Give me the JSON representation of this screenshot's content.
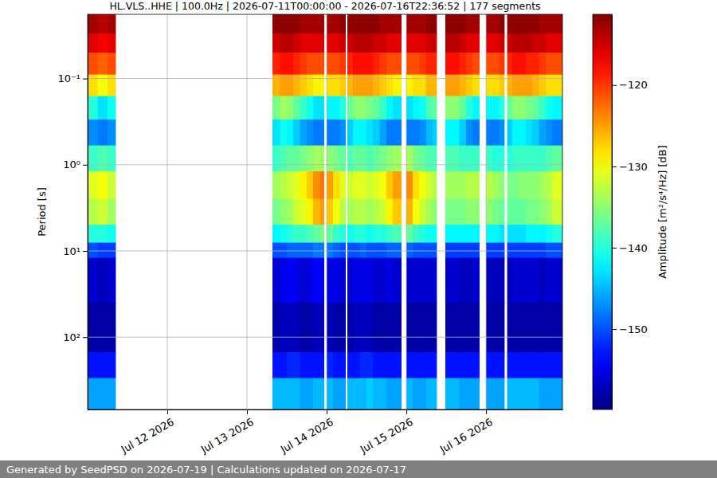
{
  "chart_data": {
    "type": "heatmap",
    "title": "HL.VLS..HHE | 100.0Hz | 2026-07-11T00:00:00 - 2026-07-16T22:36:52 | 177 segments",
    "y_label": "Period [s]",
    "footer": "Generated by SeedPSD on 2026-07-19 | Calculations updated on 2026-07-17",
    "log": "y",
    "grid": true,
    "xlim": [
      "2026-07-11T00:00:00",
      "2026-07-16T23:00:00"
    ],
    "xticks": [
      {
        "value": "2026-07-12T00:00:00",
        "label": "Jul 12 2026"
      },
      {
        "value": "2026-07-13T00:00:00",
        "label": "Jul 13 2026"
      },
      {
        "value": "2026-07-14T00:00:00",
        "label": "Jul 14 2026"
      },
      {
        "value": "2026-07-15T00:00:00",
        "label": "Jul 15 2026"
      },
      {
        "value": "2026-07-16T00:00:00",
        "label": "Jul 16 2026"
      }
    ],
    "ylim": [
      690,
      0.018
    ],
    "yticks": [
      {
        "value": 0.1,
        "label": "10⁻¹"
      },
      {
        "value": 1,
        "label": "10⁰"
      },
      {
        "value": 10,
        "label": "10¹"
      },
      {
        "value": 100,
        "label": "10²"
      }
    ],
    "colorbar": {
      "label": "Amplitude [m²/s⁴/Hz] [dB]",
      "range": [
        -159.9,
        -111.3
      ],
      "ticks": [
        {
          "value": -120,
          "label": "−120"
        },
        {
          "value": -130,
          "label": "−130"
        },
        {
          "value": -140,
          "label": "−140"
        },
        {
          "value": -150,
          "label": "−150"
        }
      ]
    },
    "y_edges": [
      0.018,
      0.03,
      0.05,
      0.09,
      0.16,
      0.3,
      0.6,
      1.2,
      2.5,
      5,
      8,
      12,
      40,
      150,
      300,
      690
    ],
    "x_start": [
      "2026-07-11T00:00:00",
      "2026-07-11T03:00:00",
      "2026-07-11T06:00:00",
      "2026-07-13T07:45:00",
      "2026-07-13T10:00:00",
      "2026-07-13T12:00:00",
      "2026-07-13T14:00:00",
      "2026-07-13T16:00:00",
      "2026-07-13T18:00:00",
      "2026-07-13T20:00:00",
      "2026-07-13T22:00:00",
      "2026-07-14T00:00:00",
      "2026-07-14T02:00:00",
      "2026-07-14T04:00:00",
      "2026-07-14T06:20:00",
      "2026-07-14T08:00:00",
      "2026-07-14T10:00:00",
      "2026-07-14T12:00:00",
      "2026-07-14T14:00:00",
      "2026-07-14T16:00:00",
      "2026-07-14T18:00:00",
      "2026-07-14T20:00:00",
      "2026-07-15T00:00:00",
      "2026-07-15T02:00:00",
      "2026-07-15T04:00:00",
      "2026-07-15T06:00:00",
      "2026-07-15T08:00:00",
      "2026-07-15T11:50:00",
      "2026-07-15T14:00:00",
      "2026-07-15T16:00:00",
      "2026-07-15T18:00:00",
      "2026-07-15T20:00:00",
      "2026-07-16T00:00:00",
      "2026-07-16T02:00:00",
      "2026-07-16T04:00:00",
      "2026-07-16T06:20:00",
      "2026-07-16T08:00:00",
      "2026-07-16T10:00:00",
      "2026-07-16T12:00:00",
      "2026-07-16T14:00:00",
      "2026-07-16T16:00:00",
      "2026-07-16T18:00:00",
      "2026-07-16T20:00:00"
    ],
    "x_end": [
      "2026-07-11T03:00:00",
      "2026-07-11T06:00:00",
      "2026-07-11T08:30:00",
      "2026-07-13T10:00:00",
      "2026-07-13T12:00:00",
      "2026-07-13T14:00:00",
      "2026-07-13T16:00:00",
      "2026-07-13T18:00:00",
      "2026-07-13T20:00:00",
      "2026-07-13T22:00:00",
      "2026-07-13T23:15:00",
      "2026-07-14T02:00:00",
      "2026-07-14T04:00:00",
      "2026-07-14T05:40:00",
      "2026-07-14T08:00:00",
      "2026-07-14T10:00:00",
      "2026-07-14T12:00:00",
      "2026-07-14T14:00:00",
      "2026-07-14T16:00:00",
      "2026-07-14T18:00:00",
      "2026-07-14T20:00:00",
      "2026-07-14T22:30:00",
      "2026-07-15T02:00:00",
      "2026-07-15T04:00:00",
      "2026-07-15T06:00:00",
      "2026-07-15T08:00:00",
      "2026-07-15T09:10:00",
      "2026-07-15T14:00:00",
      "2026-07-15T16:00:00",
      "2026-07-15T18:00:00",
      "2026-07-15T20:00:00",
      "2026-07-15T22:00:00",
      "2026-07-16T02:00:00",
      "2026-07-16T04:00:00",
      "2026-07-16T05:30:00",
      "2026-07-16T08:00:00",
      "2026-07-16T10:00:00",
      "2026-07-16T12:00:00",
      "2026-07-16T14:00:00",
      "2026-07-16T16:00:00",
      "2026-07-16T18:00:00",
      "2026-07-16T20:00:00",
      "2026-07-16T23:00:00"
    ],
    "values": [
      [
        -113,
        -116,
        -121,
        -128,
        -140,
        -147,
        -139,
        -131,
        -133,
        -140,
        -150,
        -156,
        -158,
        -153,
        -146
      ],
      [
        -114,
        -117,
        -122,
        -130,
        -143,
        -148,
        -138,
        -130,
        -132,
        -140,
        -151,
        -157,
        -158,
        -153,
        -146
      ],
      [
        -113,
        -116,
        -121,
        -128,
        -141,
        -147,
        -139,
        -132,
        -134,
        -141,
        -151,
        -156,
        -158,
        -153,
        -146
      ],
      [
        -112,
        -115,
        -119,
        -126,
        -136,
        -143,
        -139,
        -134,
        -136,
        -142,
        -150,
        -156,
        -158,
        -153,
        -145
      ],
      [
        -112,
        -114,
        -118,
        -125,
        -134,
        -141,
        -138,
        -133,
        -135,
        -141,
        -150,
        -155,
        -157,
        -153,
        -145
      ],
      [
        -112,
        -114,
        -118,
        -125,
        -135,
        -142,
        -137,
        -132,
        -134,
        -140,
        -149,
        -154,
        -157,
        -152,
        -145
      ],
      [
        -112,
        -115,
        -119,
        -126,
        -137,
        -144,
        -137,
        -131,
        -132,
        -139,
        -149,
        -155,
        -157,
        -152,
        -145
      ],
      [
        -113,
        -116,
        -120,
        -127,
        -139,
        -146,
        -136,
        -129,
        -131,
        -139,
        -149,
        -156,
        -158,
        -153,
        -146
      ],
      [
        -113,
        -116,
        -121,
        -128,
        -141,
        -147,
        -135,
        -127,
        -129,
        -138,
        -149,
        -155,
        -158,
        -153,
        -146
      ],
      [
        -113,
        -116,
        -121,
        -129,
        -143,
        -148,
        -134,
        -124,
        -126,
        -137,
        -148,
        -154,
        -157,
        -153,
        -145
      ],
      [
        -113,
        -116,
        -121,
        -129,
        -143,
        -148,
        -134,
        -123,
        -125,
        -136,
        -148,
        -154,
        -157,
        -153,
        -145
      ],
      [
        -113,
        -116,
        -121,
        -128,
        -142,
        -148,
        -135,
        -125,
        -127,
        -137,
        -148,
        -155,
        -157,
        -152,
        -145
      ],
      [
        -113,
        -116,
        -121,
        -128,
        -142,
        -148,
        -136,
        -128,
        -130,
        -139,
        -149,
        -155,
        -158,
        -153,
        -146
      ],
      [
        -112,
        -115,
        -120,
        -127,
        -140,
        -147,
        -137,
        -131,
        -133,
        -140,
        -150,
        -156,
        -158,
        -153,
        -146
      ],
      [
        -112,
        -115,
        -119,
        -126,
        -137,
        -144,
        -138,
        -132,
        -134,
        -141,
        -150,
        -156,
        -158,
        -153,
        -145
      ],
      [
        -112,
        -114,
        -118,
        -125,
        -135,
        -142,
        -137,
        -131,
        -133,
        -140,
        -150,
        -155,
        -157,
        -153,
        -145
      ],
      [
        -112,
        -114,
        -118,
        -125,
        -135,
        -142,
        -137,
        -131,
        -133,
        -140,
        -149,
        -155,
        -157,
        -152,
        -145
      ],
      [
        -112,
        -114,
        -118,
        -125,
        -136,
        -143,
        -138,
        -132,
        -134,
        -141,
        -150,
        -155,
        -157,
        -152,
        -144
      ],
      [
        -112,
        -115,
        -119,
        -126,
        -137,
        -144,
        -137,
        -131,
        -133,
        -140,
        -150,
        -156,
        -158,
        -153,
        -145
      ],
      [
        -113,
        -115,
        -120,
        -127,
        -139,
        -146,
        -136,
        -130,
        -132,
        -140,
        -150,
        -156,
        -158,
        -153,
        -145
      ],
      [
        -113,
        -116,
        -121,
        -128,
        -142,
        -148,
        -135,
        -127,
        -129,
        -139,
        -149,
        -155,
        -158,
        -153,
        -146
      ],
      [
        -113,
        -116,
        -121,
        -129,
        -143,
        -148,
        -134,
        -125,
        -127,
        -138,
        -149,
        -156,
        -158,
        -153,
        -146
      ],
      [
        -113,
        -116,
        -121,
        -129,
        -143,
        -148,
        -134,
        -124,
        -126,
        -137,
        -149,
        -156,
        -158,
        -153,
        -145
      ],
      [
        -113,
        -116,
        -121,
        -128,
        -142,
        -148,
        -136,
        -128,
        -130,
        -139,
        -150,
        -156,
        -158,
        -153,
        -146
      ],
      [
        -113,
        -116,
        -120,
        -128,
        -141,
        -147,
        -137,
        -130,
        -132,
        -140,
        -150,
        -156,
        -158,
        -153,
        -146
      ],
      [
        -112,
        -115,
        -119,
        -126,
        -138,
        -145,
        -138,
        -132,
        -134,
        -141,
        -150,
        -156,
        -158,
        -153,
        -145
      ],
      [
        -112,
        -115,
        -119,
        -126,
        -137,
        -144,
        -138,
        -133,
        -135,
        -141,
        -150,
        -156,
        -158,
        -153,
        -145
      ],
      [
        -112,
        -114,
        -118,
        -125,
        -135,
        -142,
        -138,
        -134,
        -136,
        -142,
        -151,
        -156,
        -158,
        -153,
        -145
      ],
      [
        -112,
        -114,
        -118,
        -125,
        -135,
        -142,
        -138,
        -134,
        -136,
        -142,
        -151,
        -156,
        -158,
        -153,
        -145
      ],
      [
        -112,
        -115,
        -119,
        -126,
        -137,
        -144,
        -139,
        -134,
        -136,
        -142,
        -151,
        -157,
        -158,
        -153,
        -146
      ],
      [
        -113,
        -116,
        -120,
        -127,
        -140,
        -147,
        -139,
        -133,
        -135,
        -142,
        -151,
        -157,
        -158,
        -153,
        -146
      ],
      [
        -113,
        -116,
        -121,
        -128,
        -142,
        -148,
        -139,
        -133,
        -135,
        -142,
        -151,
        -156,
        -158,
        -153,
        -146
      ],
      [
        -113,
        -116,
        -121,
        -128,
        -142,
        -148,
        -139,
        -133,
        -135,
        -142,
        -151,
        -157,
        -158,
        -153,
        -146
      ],
      [
        -113,
        -116,
        -121,
        -128,
        -142,
        -148,
        -140,
        -134,
        -136,
        -142,
        -151,
        -157,
        -158,
        -153,
        -146
      ],
      [
        -112,
        -115,
        -120,
        -127,
        -140,
        -147,
        -140,
        -135,
        -137,
        -143,
        -151,
        -157,
        -158,
        -153,
        -146
      ],
      [
        -112,
        -115,
        -119,
        -126,
        -137,
        -144,
        -140,
        -136,
        -137,
        -143,
        -151,
        -157,
        -158,
        -153,
        -145
      ],
      [
        -112,
        -114,
        -118,
        -125,
        -135,
        -142,
        -139,
        -136,
        -137,
        -143,
        -151,
        -156,
        -158,
        -153,
        -145
      ],
      [
        -112,
        -114,
        -118,
        -125,
        -135,
        -142,
        -139,
        -135,
        -137,
        -143,
        -151,
        -156,
        -158,
        -153,
        -145
      ],
      [
        -112,
        -114,
        -119,
        -125,
        -136,
        -143,
        -139,
        -135,
        -136,
        -142,
        -151,
        -156,
        -158,
        -153,
        -145
      ],
      [
        -112,
        -115,
        -119,
        -126,
        -137,
        -144,
        -139,
        -135,
        -136,
        -142,
        -151,
        -156,
        -158,
        -153,
        -145
      ],
      [
        -113,
        -115,
        -120,
        -127,
        -139,
        -146,
        -139,
        -134,
        -135,
        -142,
        -151,
        -157,
        -158,
        -153,
        -146
      ],
      [
        -113,
        -116,
        -121,
        -128,
        -141,
        -147,
        -138,
        -133,
        -134,
        -141,
        -150,
        -156,
        -158,
        -153,
        -146
      ],
      [
        -113,
        -116,
        -121,
        -128,
        -142,
        -148,
        -137,
        -131,
        -132,
        -140,
        -150,
        -156,
        -158,
        -153,
        -146
      ]
    ]
  }
}
